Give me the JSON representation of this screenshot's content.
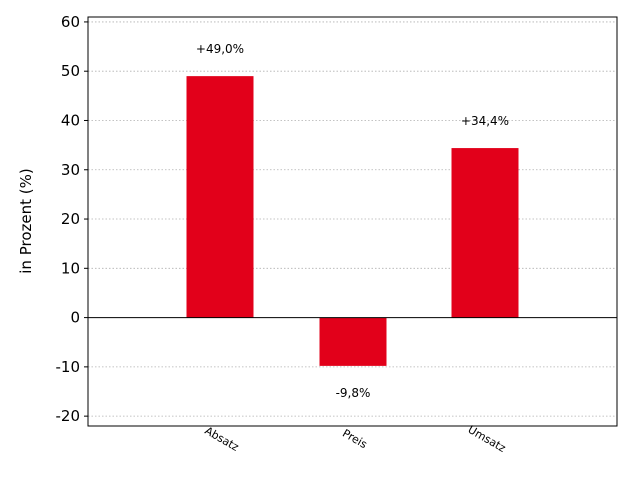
{
  "chart_data": {
    "type": "bar",
    "categories": [
      "Absatz",
      "Preis",
      "Umsatz"
    ],
    "values": [
      49.0,
      -9.8,
      34.4
    ],
    "data_labels": [
      "+49,0%",
      "-9,8%",
      "+34,4%"
    ],
    "title": "",
    "xlabel": "",
    "ylabel": "in Prozent (%)",
    "ylim": [
      -22,
      61
    ],
    "yticks": [
      -20,
      -10,
      0,
      10,
      20,
      30,
      40,
      50,
      60
    ],
    "grid": true,
    "bar_color": "#e2001a"
  }
}
